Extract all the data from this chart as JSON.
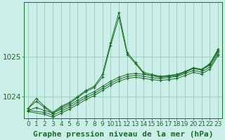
{
  "background_color": "#cceee8",
  "grid_color": "#99ccbb",
  "line_color": "#1a6b2a",
  "title": "Graphe pression niveau de la mer (hPa)",
  "xlim": [
    -0.5,
    23.5
  ],
  "ylim": [
    1023.45,
    1026.35
  ],
  "yticks": [
    1024,
    1025
  ],
  "xticks": [
    0,
    1,
    2,
    3,
    4,
    5,
    6,
    7,
    8,
    9,
    10,
    11,
    12,
    13,
    14,
    15,
    16,
    17,
    18,
    19,
    20,
    21,
    22,
    23
  ],
  "lines": [
    {
      "x": [
        0,
        1,
        2,
        3,
        4,
        5,
        6,
        7,
        8,
        9,
        10,
        11,
        12,
        13,
        14,
        15,
        16,
        17,
        18,
        19,
        20,
        21,
        22,
        23
      ],
      "y": [
        1023.7,
        1023.95,
        1023.75,
        1023.6,
        1023.75,
        1023.85,
        1024.0,
        1024.15,
        1024.25,
        1024.55,
        1025.35,
        1026.1,
        1025.1,
        1024.85,
        1024.6,
        1024.55,
        1024.5,
        1024.52,
        1024.55,
        1024.62,
        1024.72,
        1024.68,
        1024.82,
        1025.18
      ]
    },
    {
      "x": [
        0,
        1,
        2,
        3,
        4,
        5,
        6,
        7,
        8,
        9,
        10,
        11,
        12,
        13,
        14,
        15,
        16,
        17,
        18,
        19,
        20,
        21,
        22,
        23
      ],
      "y": [
        1023.7,
        1023.88,
        1023.72,
        1023.57,
        1023.72,
        1023.82,
        1023.97,
        1024.12,
        1024.22,
        1024.48,
        1025.28,
        1025.98,
        1025.05,
        1024.82,
        1024.57,
        1024.52,
        1024.48,
        1024.5,
        1024.52,
        1024.6,
        1024.7,
        1024.66,
        1024.8,
        1025.15
      ]
    },
    {
      "x": [
        0,
        1,
        2,
        3,
        4,
        5,
        6,
        7,
        8,
        9,
        10,
        11,
        12,
        13,
        14,
        15,
        16,
        17,
        18,
        19,
        20,
        21,
        22,
        23
      ],
      "y": [
        1023.65,
        1023.72,
        1023.65,
        1023.58,
        1023.68,
        1023.78,
        1023.9,
        1024.02,
        1024.12,
        1024.25,
        1024.38,
        1024.48,
        1024.55,
        1024.58,
        1024.55,
        1024.52,
        1024.5,
        1024.52,
        1024.55,
        1024.62,
        1024.7,
        1024.66,
        1024.78,
        1025.12
      ]
    },
    {
      "x": [
        0,
        2,
        3,
        4,
        5,
        6,
        7,
        8,
        9,
        10,
        11,
        12,
        13,
        14,
        15,
        16,
        17,
        18,
        19,
        20,
        21,
        22,
        23
      ],
      "y": [
        1023.65,
        1023.6,
        1023.53,
        1023.63,
        1023.73,
        1023.85,
        1023.97,
        1024.07,
        1024.2,
        1024.33,
        1024.43,
        1024.5,
        1024.53,
        1024.5,
        1024.47,
        1024.45,
        1024.47,
        1024.5,
        1024.57,
        1024.65,
        1024.61,
        1024.73,
        1025.07
      ]
    },
    {
      "x": [
        0,
        2,
        3,
        4,
        5,
        6,
        7,
        8,
        9,
        10,
        11,
        12,
        13,
        14,
        15,
        16,
        17,
        18,
        19,
        20,
        21,
        22,
        23
      ],
      "y": [
        1023.62,
        1023.55,
        1023.48,
        1023.58,
        1023.68,
        1023.8,
        1023.92,
        1024.02,
        1024.15,
        1024.28,
        1024.38,
        1024.45,
        1024.48,
        1024.45,
        1024.42,
        1024.4,
        1024.42,
        1024.45,
        1024.52,
        1024.6,
        1024.56,
        1024.68,
        1025.02
      ]
    }
  ],
  "title_fontsize": 8,
  "tick_fontsize": 6.5,
  "tick_color": "#1a6b2a",
  "title_color": "#1a6b2a",
  "spine_color": "#1a6b2a"
}
